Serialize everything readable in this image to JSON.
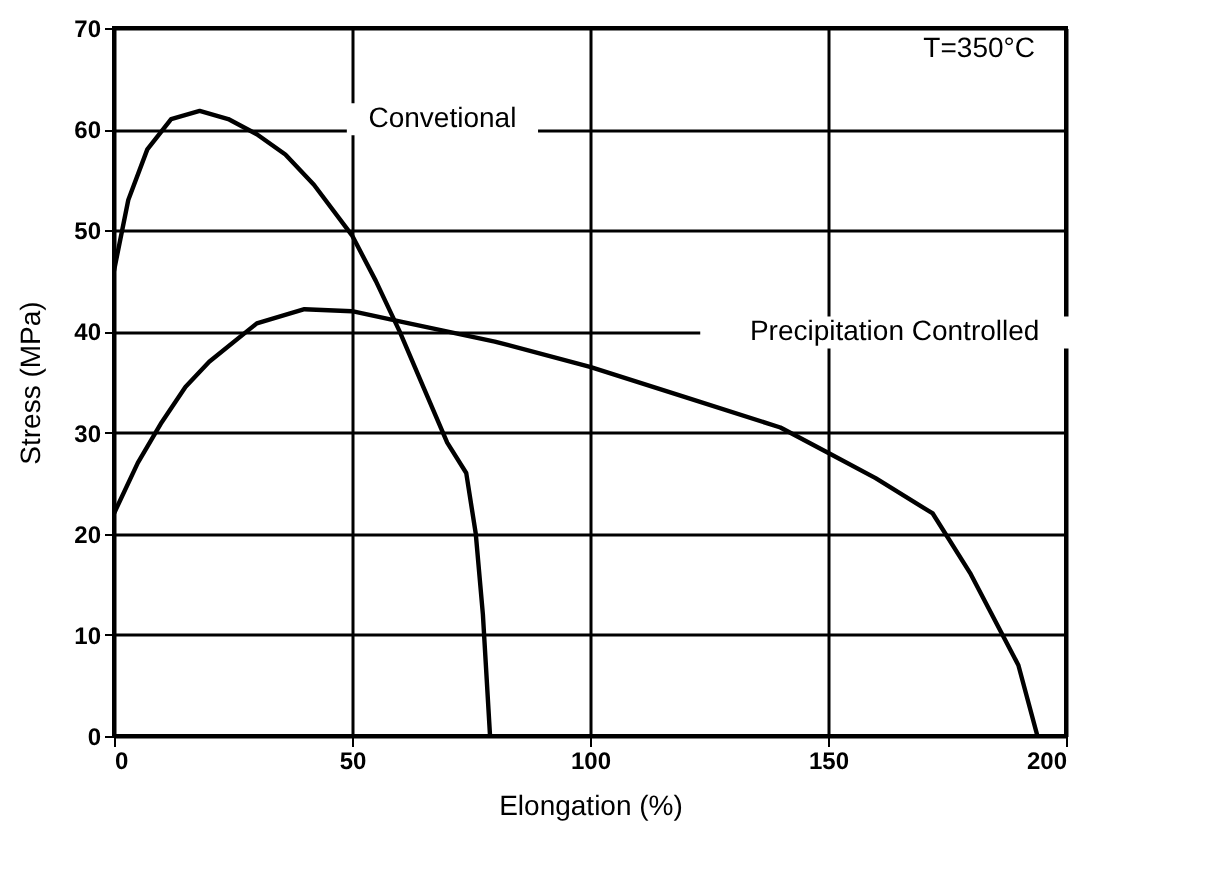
{
  "chart_data": {
    "type": "line",
    "xlabel": "Elongation (%)",
    "ylabel": "Stress (MPa)",
    "xlim": [
      0,
      200
    ],
    "xticks": [
      0,
      50,
      100,
      150,
      200
    ],
    "ylim": [
      0,
      70
    ],
    "yticks": [
      0,
      10,
      20,
      30,
      40,
      50,
      60,
      70
    ],
    "grid": true,
    "marker": "none",
    "line_style": "solid",
    "series": [
      {
        "color": "#000000",
        "x": [
          0,
          3,
          7,
          12,
          18,
          24,
          30,
          36,
          42,
          50,
          55,
          60,
          65,
          70,
          74,
          76,
          77.5,
          79
        ],
        "values": [
          46,
          53,
          58,
          61,
          61.8,
          61,
          59.5,
          57.5,
          54.5,
          49.5,
          45,
          40,
          34.5,
          29,
          26,
          20,
          12,
          0
        ]
      },
      {
        "color": "#000000",
        "x": [
          0,
          5,
          10,
          15,
          20,
          30,
          40,
          50,
          60,
          80,
          100,
          120,
          140,
          150,
          160,
          172,
          180,
          190,
          194
        ],
        "values": [
          22,
          27,
          31,
          34.5,
          37,
          40.8,
          42.2,
          42,
          41,
          39,
          36.5,
          33.5,
          30.5,
          28,
          25.5,
          22,
          16,
          7,
          0
        ]
      }
    ],
    "annotations": [
      "Convetional",
      "Precipitation Controlled",
      "T=350°C"
    ]
  }
}
